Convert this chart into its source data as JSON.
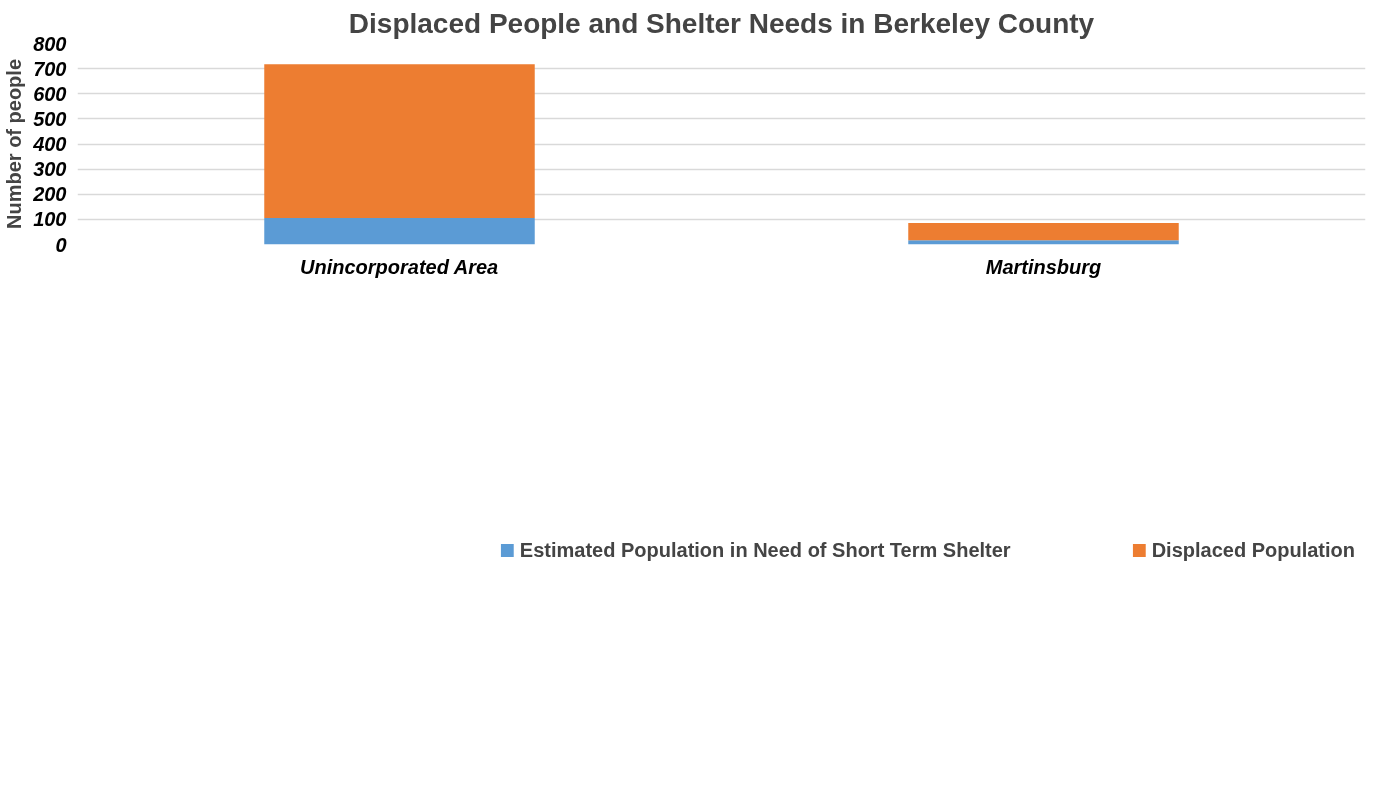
{
  "chart_data": {
    "type": "bar",
    "title": "Displaced People and Shelter Needs in Berkeley County",
    "ylabel": "Number of people",
    "categories": [
      "Unincorporated Area",
      "Martinsburg"
    ],
    "stacked": true,
    "series": [
      {
        "name": "Estimated Population in Need of Short Term Shelter",
        "color": "#5b9bd5",
        "values": [
          105,
          17
        ]
      },
      {
        "name": "Displaced Population",
        "color": "#ed7d31",
        "values": [
          612,
          69
        ]
      }
    ],
    "ylim": [
      0,
      800
    ],
    "yticks": [
      0,
      100,
      200,
      300,
      400,
      500,
      600,
      700,
      800
    ],
    "grid": "y",
    "legend": "bottom"
  }
}
